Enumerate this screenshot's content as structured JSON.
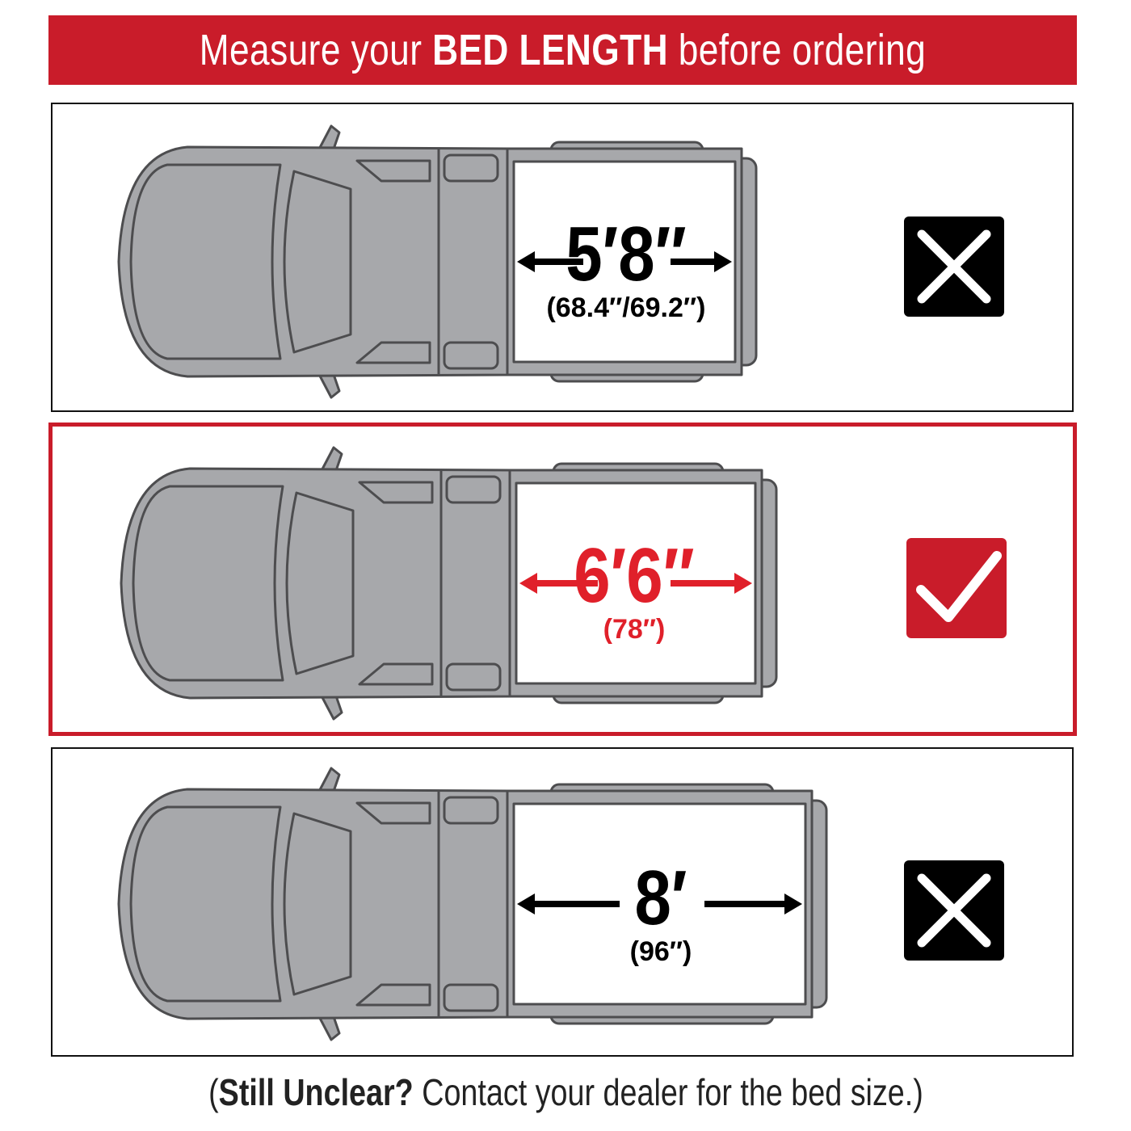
{
  "header": {
    "prefix": "Measure your ",
    "emphasis": "BED LENGTH",
    "suffix": " before ordering"
  },
  "accent_color": "#c91c2a",
  "options": [
    {
      "length": "5′8″",
      "detail": "(68.4″/69.2″)",
      "status": "incorrect",
      "icon": "x-mark-icon",
      "color": "#000000",
      "bed_ft": 5.67
    },
    {
      "length": "6′6″",
      "detail": "(78″)",
      "status": "correct",
      "icon": "check-mark-icon",
      "color": "#e0202a",
      "bed_ft": 6.5
    },
    {
      "length": "8′",
      "detail": "(96″)",
      "status": "incorrect",
      "icon": "x-mark-icon",
      "color": "#000000",
      "bed_ft": 8
    }
  ],
  "footer": {
    "open": "(",
    "emphasis": "Still Unclear?",
    "rest": " Contact your dealer for the bed size.",
    "close": ")"
  }
}
